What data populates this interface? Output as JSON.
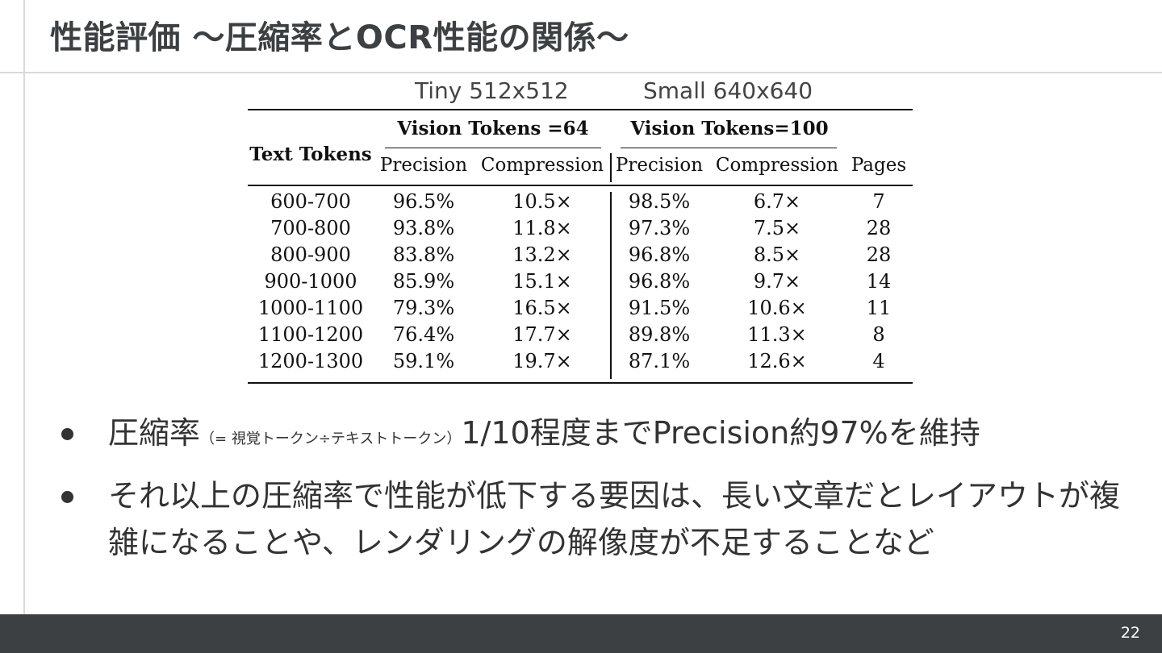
{
  "slide": {
    "title": "性能評価 〜圧縮率とOCR性能の関係〜",
    "page_number": "22"
  },
  "column_groups": {
    "tiny_label": "Tiny 512x512",
    "small_label": "Small 640x640"
  },
  "table": {
    "row_header": "Text Tokens",
    "group1": "Vision Tokens =64",
    "group2": "Vision Tokens=100",
    "columns": [
      "Precision",
      "Compression",
      "Precision",
      "Compression",
      "Pages"
    ],
    "rows": [
      [
        "600-700",
        "96.5%",
        "10.5×",
        "98.5%",
        "6.7×",
        "7"
      ],
      [
        "700-800",
        "93.8%",
        "11.8×",
        "97.3%",
        "7.5×",
        "28"
      ],
      [
        "800-900",
        "83.8%",
        "13.2×",
        "96.8%",
        "8.5×",
        "28"
      ],
      [
        "900-1000",
        "85.9%",
        "15.1×",
        "96.8%",
        "9.7×",
        "14"
      ],
      [
        "1000-1100",
        "79.3%",
        "16.5×",
        "91.5%",
        "10.6×",
        "11"
      ],
      [
        "1100-1200",
        "76.4%",
        "17.7×",
        "89.8%",
        "11.3×",
        "8"
      ],
      [
        "1200-1300",
        "59.1%",
        "19.7×",
        "87.1%",
        "12.6×",
        "4"
      ]
    ]
  },
  "bullets": [
    {
      "lead": "圧縮率",
      "note": "（= 視覚トークン÷テキストトークン）",
      "tail": "1/10程度までPrecision約97%を維持"
    },
    {
      "text": "それ以上の圧縮率で性能が低下する要因は、長い文章だとレイアウトが複雑になることや、レンダリングの解像度が不足することなど"
    }
  ]
}
